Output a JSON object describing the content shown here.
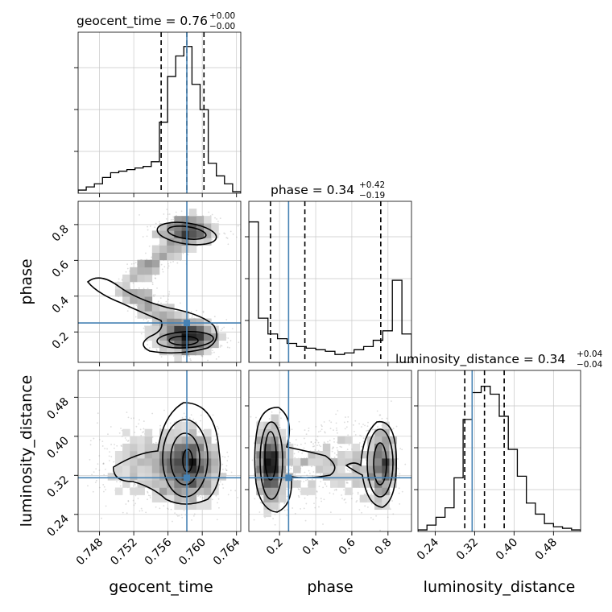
{
  "chart_data": {
    "type": "corner",
    "parameters": [
      "geocent_time",
      "phase",
      "luminosity_distance"
    ],
    "axis_labels": {
      "geocent_time": "geocent_time",
      "phase": "phase",
      "luminosity_distance": "luminosity_distance"
    },
    "ranges": {
      "geocent_time": [
        0.7455,
        0.7645
      ],
      "phase": [
        0.03,
        0.93
      ],
      "luminosity_distance": [
        0.205,
        0.535
      ]
    },
    "ticks": {
      "geocent_time": [
        "0.748",
        "0.752",
        "0.756",
        "0.760",
        "0.764"
      ],
      "phase": [
        "0.2",
        "0.4",
        "0.6",
        "0.8"
      ],
      "luminosity_distance": [
        "0.24",
        "0.32",
        "0.40",
        "0.48"
      ]
    },
    "titles": {
      "geocent_time": {
        "base": "geocent_time = 0.76",
        "sup": "+0.00",
        "sub": "−0.00"
      },
      "phase": {
        "base": "phase = 0.34",
        "sup": "+0.42",
        "sub": "−0.19"
      },
      "luminosity_distance": {
        "base": "luminosity_distance = 0.34",
        "sup": "+0.04",
        "sub": "−0.04"
      }
    },
    "truths": {
      "geocent_time": 0.7582,
      "phase": 0.25,
      "luminosity_distance": 0.315
    },
    "quantiles": {
      "geocent_time": [
        0.7552,
        0.7582,
        0.7602
      ],
      "phase": [
        0.15,
        0.34,
        0.76
      ],
      "luminosity_distance": [
        0.3,
        0.34,
        0.38
      ]
    },
    "histograms": {
      "geocent_time": [
        0.02,
        0.04,
        0.06,
        0.1,
        0.13,
        0.14,
        0.15,
        0.16,
        0.17,
        0.2,
        0.45,
        0.74,
        0.87,
        0.93,
        0.69,
        0.53,
        0.19,
        0.11,
        0.06,
        0.01
      ],
      "phase": [
        0.89,
        0.28,
        0.18,
        0.15,
        0.12,
        0.1,
        0.09,
        0.08,
        0.07,
        0.05,
        0.06,
        0.08,
        0.1,
        0.14,
        0.2,
        0.52,
        0.18
      ],
      "luminosity_distance": [
        0.01,
        0.04,
        0.09,
        0.15,
        0.34,
        0.71,
        0.88,
        0.92,
        0.87,
        0.73,
        0.52,
        0.35,
        0.18,
        0.11,
        0.05,
        0.03,
        0.02,
        0.01
      ]
    },
    "grid": true,
    "colors": {
      "truth": "#4682b4",
      "contour": "#000000",
      "scatter": "#9a9a9a"
    }
  }
}
